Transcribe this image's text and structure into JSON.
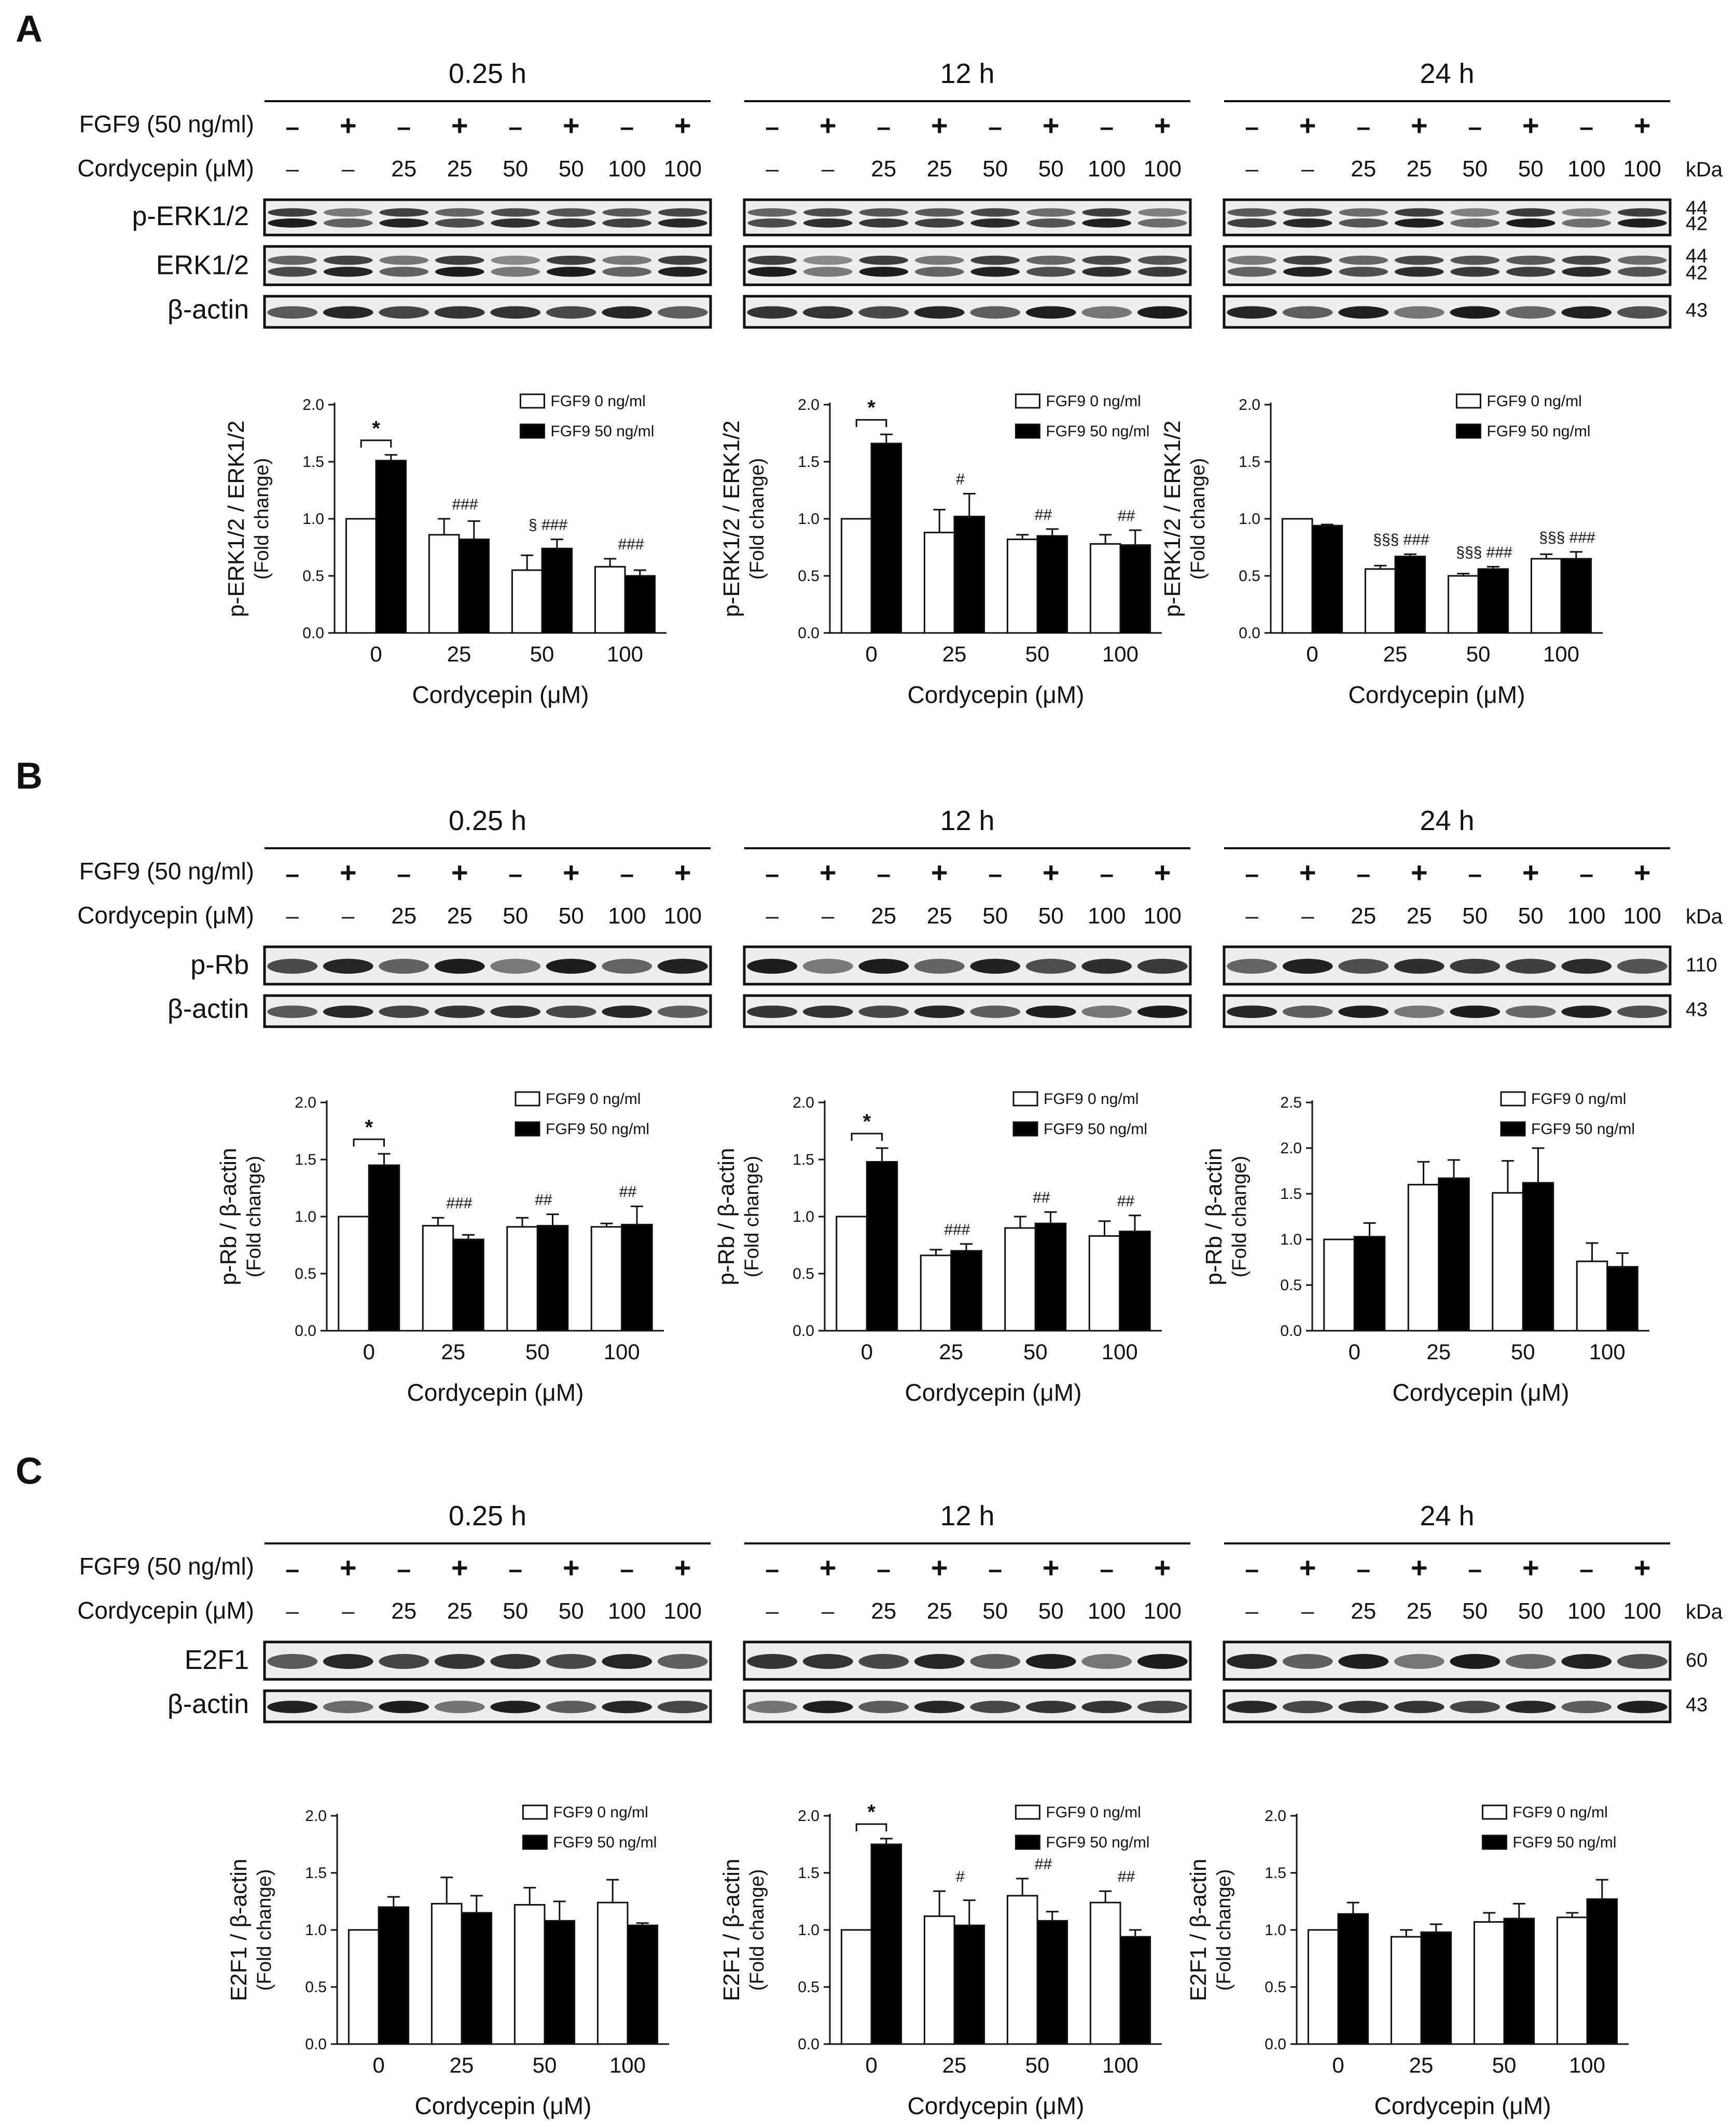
{
  "figure": {
    "colors": {
      "ink": "#111111",
      "blot_bg": "#eeeeee",
      "band": "#1c1c1c",
      "bar_open": "#ffffff",
      "bar_filled": "#000000"
    },
    "common": {
      "fgf9_label": "FGF9 (50 ng/ml)",
      "cordycepin_label": "Cordycepin (μM)",
      "fgf9_signs": [
        "–",
        "+",
        "–",
        "+",
        "–",
        "+",
        "–",
        "+"
      ],
      "cordycepin_values": [
        "–",
        "–",
        "25",
        "25",
        "50",
        "50",
        "100",
        "100"
      ],
      "kda_label": "kDa",
      "timepoints": [
        "0.25 h",
        "12 h",
        "24 h"
      ],
      "xlabel": "Cordycepin (μM)",
      "legend": [
        "FGF9  0 ng/ml",
        "FGF9 50 ng/ml"
      ]
    },
    "panels": [
      {
        "letter": "A",
        "blots": [
          {
            "name": "p-ERK1/2",
            "kda": [
              "44",
              "42"
            ]
          },
          {
            "name": "ERK1/2",
            "kda": [
              "44",
              "42"
            ]
          },
          {
            "name": "β-actin",
            "kda": [
              "43"
            ]
          }
        ]
      },
      {
        "letter": "B",
        "blots": [
          {
            "name": "p-Rb",
            "kda": [
              "110"
            ]
          },
          {
            "name": "β-actin",
            "kda": [
              "43"
            ]
          }
        ]
      },
      {
        "letter": "C",
        "blots": [
          {
            "name": "E2F1",
            "kda": [
              "60"
            ]
          },
          {
            "name": "β-actin",
            "kda": [
              "43"
            ]
          }
        ]
      }
    ]
  },
  "chart_data": [
    {
      "panel": "A",
      "timepoint": "0.25 h",
      "type": "bar",
      "ylabel": "p-ERK1/2 / ERK1/2",
      "ylabel2": "(Fold change)",
      "xlabel": "Cordycepin (μM)",
      "categories": [
        "0",
        "25",
        "50",
        "100"
      ],
      "ylim": [
        0,
        2
      ],
      "ticks": [
        "0.0",
        "0.5",
        "1.0",
        "1.5",
        "2.0"
      ],
      "series": [
        {
          "name": "FGF9  0 ng/ml",
          "values": [
            1.0,
            0.86,
            0.55,
            0.58
          ],
          "errors": [
            0,
            0.14,
            0.13,
            0.07
          ]
        },
        {
          "name": "FGF9 50 ng/ml",
          "values": [
            1.51,
            0.82,
            0.74,
            0.5
          ],
          "errors": [
            0.05,
            0.16,
            0.08,
            0.05
          ]
        }
      ],
      "marks": [
        "",
        "###",
        "§  ###",
        "###"
      ],
      "star": "*"
    },
    {
      "panel": "A",
      "timepoint": "12 h",
      "type": "bar",
      "ylabel": "p-ERK1/2 / ERK1/2",
      "ylabel2": "(Fold change)",
      "xlabel": "Cordycepin (μM)",
      "categories": [
        "0",
        "25",
        "50",
        "100"
      ],
      "ylim": [
        0,
        2
      ],
      "ticks": [
        "0.0",
        "0.5",
        "1.0",
        "1.5",
        "2.0"
      ],
      "series": [
        {
          "name": "FGF9  0 ng/ml",
          "values": [
            1.0,
            0.88,
            0.82,
            0.78
          ],
          "errors": [
            0,
            0.2,
            0.04,
            0.08
          ]
        },
        {
          "name": "FGF9 50 ng/ml",
          "values": [
            1.66,
            1.02,
            0.85,
            0.77
          ],
          "errors": [
            0.08,
            0.2,
            0.06,
            0.13
          ]
        }
      ],
      "marks": [
        "",
        "#",
        "##",
        "##"
      ],
      "star": "*"
    },
    {
      "panel": "A",
      "timepoint": "24 h",
      "type": "bar",
      "ylabel": "p-ERK1/2 / ERK1/2",
      "ylabel2": "(Fold change)",
      "xlabel": "Cordycepin (μM)",
      "categories": [
        "0",
        "25",
        "50",
        "100"
      ],
      "ylim": [
        0,
        2
      ],
      "ticks": [
        "0.0",
        "0.5",
        "1.0",
        "1.5",
        "2.0"
      ],
      "series": [
        {
          "name": "FGF9  0 ng/ml",
          "values": [
            1.0,
            0.56,
            0.5,
            0.65
          ],
          "errors": [
            0,
            0.03,
            0.02,
            0.04
          ]
        },
        {
          "name": "FGF9 50 ng/ml",
          "values": [
            0.94,
            0.67,
            0.56,
            0.65
          ],
          "errors": [
            0.01,
            0.02,
            0.02,
            0.06
          ]
        }
      ],
      "marks": [
        "",
        "§§§ ###",
        "§§§ ###",
        "§§§ ###"
      ],
      "star": ""
    },
    {
      "panel": "B",
      "timepoint": "0.25 h",
      "type": "bar",
      "ylabel": "p-Rb / β-actin",
      "ylabel2": "(Fold change)",
      "xlabel": "Cordycepin (μM)",
      "categories": [
        "0",
        "25",
        "50",
        "100"
      ],
      "ylim": [
        0,
        2
      ],
      "ticks": [
        "0.0",
        "0.5",
        "1.0",
        "1.5",
        "2.0"
      ],
      "series": [
        {
          "name": "FGF9  0 ng/ml",
          "values": [
            1.0,
            0.92,
            0.91,
            0.91
          ],
          "errors": [
            0,
            0.07,
            0.08,
            0.03
          ]
        },
        {
          "name": "FGF9 50 ng/ml",
          "values": [
            1.45,
            0.8,
            0.92,
            0.93
          ],
          "errors": [
            0.1,
            0.04,
            0.1,
            0.16
          ]
        }
      ],
      "marks": [
        "",
        "###",
        "##",
        "##"
      ],
      "star": "*"
    },
    {
      "panel": "B",
      "timepoint": "12 h",
      "type": "bar",
      "ylabel": "p-Rb / β-actin",
      "ylabel2": "(Fold change)",
      "xlabel": "Cordycepin (μM)",
      "categories": [
        "0",
        "25",
        "50",
        "100"
      ],
      "ylim": [
        0,
        2
      ],
      "ticks": [
        "0.0",
        "0.5",
        "1.0",
        "1.5",
        "2.0"
      ],
      "series": [
        {
          "name": "FGF9  0 ng/ml",
          "values": [
            1.0,
            0.66,
            0.9,
            0.83
          ],
          "errors": [
            0,
            0.05,
            0.1,
            0.13
          ]
        },
        {
          "name": "FGF9 50 ng/ml",
          "values": [
            1.48,
            0.7,
            0.94,
            0.87
          ],
          "errors": [
            0.12,
            0.06,
            0.1,
            0.14
          ]
        }
      ],
      "marks": [
        "",
        "###",
        "##",
        "##"
      ],
      "star": "*"
    },
    {
      "panel": "B",
      "timepoint": "24 h",
      "type": "bar",
      "ylabel": "p-Rb / β-actin",
      "ylabel2": "(Fold change)",
      "xlabel": "Cordycepin (μM)",
      "categories": [
        "0",
        "25",
        "50",
        "100"
      ],
      "ylim": [
        0,
        2.5
      ],
      "ticks": [
        "0.0",
        "0.5",
        "1.0",
        "1.5",
        "2.0",
        "2.5"
      ],
      "series": [
        {
          "name": "FGF9  0 ng/ml",
          "values": [
            1.0,
            1.6,
            1.51,
            0.76
          ],
          "errors": [
            0,
            0.25,
            0.35,
            0.2
          ]
        },
        {
          "name": "FGF9 50 ng/ml",
          "values": [
            1.03,
            1.67,
            1.62,
            0.7
          ],
          "errors": [
            0.15,
            0.2,
            0.38,
            0.15
          ]
        }
      ],
      "marks": [
        "",
        "",
        "",
        ""
      ],
      "star": ""
    },
    {
      "panel": "C",
      "timepoint": "0.25 h",
      "type": "bar",
      "ylabel": "E2F1 / β-actin",
      "ylabel2": "(Fold change)",
      "xlabel": "Cordycepin (μM)",
      "categories": [
        "0",
        "25",
        "50",
        "100"
      ],
      "ylim": [
        0,
        2
      ],
      "ticks": [
        "0.0",
        "0.5",
        "1.0",
        "1.5",
        "2.0"
      ],
      "series": [
        {
          "name": "FGF9  0 ng/ml",
          "values": [
            1.0,
            1.23,
            1.22,
            1.24
          ],
          "errors": [
            0,
            0.23,
            0.15,
            0.2
          ]
        },
        {
          "name": "FGF9 50 ng/ml",
          "values": [
            1.2,
            1.15,
            1.08,
            1.04
          ],
          "errors": [
            0.09,
            0.15,
            0.17,
            0.02
          ]
        }
      ],
      "marks": [
        "",
        "",
        "",
        ""
      ],
      "star": ""
    },
    {
      "panel": "C",
      "timepoint": "12 h",
      "type": "bar",
      "ylabel": "E2F1 / β-actin",
      "ylabel2": "(Fold change)",
      "xlabel": "Cordycepin (μM)",
      "categories": [
        "0",
        "25",
        "50",
        "100"
      ],
      "ylim": [
        0,
        2
      ],
      "ticks": [
        "0.0",
        "0.5",
        "1.0",
        "1.5",
        "2.0"
      ],
      "series": [
        {
          "name": "FGF9  0 ng/ml",
          "values": [
            1.0,
            1.12,
            1.3,
            1.24
          ],
          "errors": [
            0,
            0.22,
            0.15,
            0.1
          ]
        },
        {
          "name": "FGF9 50 ng/ml",
          "values": [
            1.75,
            1.04,
            1.08,
            0.94
          ],
          "errors": [
            0.05,
            0.22,
            0.08,
            0.06
          ]
        }
      ],
      "marks": [
        "",
        "#",
        "##",
        "##"
      ],
      "star": "*"
    },
    {
      "panel": "C",
      "timepoint": "24 h",
      "type": "bar",
      "ylabel": "E2F1 / β-actin",
      "ylabel2": "(Fold change)",
      "xlabel": "Cordycepin (μM)",
      "categories": [
        "0",
        "25",
        "50",
        "100"
      ],
      "ylim": [
        0,
        2
      ],
      "ticks": [
        "0.0",
        "0.5",
        "1.0",
        "1.5",
        "2.0"
      ],
      "series": [
        {
          "name": "FGF9  0 ng/ml",
          "values": [
            1.0,
            0.94,
            1.07,
            1.11
          ],
          "errors": [
            0,
            0.06,
            0.08,
            0.04
          ]
        },
        {
          "name": "FGF9 50 ng/ml",
          "values": [
            1.14,
            0.98,
            1.1,
            1.27
          ],
          "errors": [
            0.1,
            0.07,
            0.13,
            0.17
          ]
        }
      ],
      "marks": [
        "",
        "",
        "",
        ""
      ],
      "star": ""
    }
  ]
}
